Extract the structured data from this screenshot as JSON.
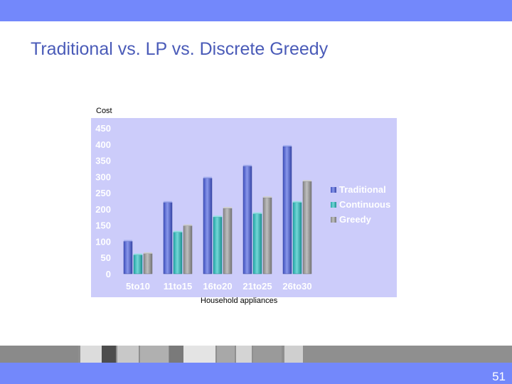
{
  "slide": {
    "title": "Traditional vs. LP vs. Discrete Greedy",
    "page_number": "51"
  },
  "colors": {
    "header_bar": "#7388fb",
    "plot_background": "#ccccfa",
    "traditional": "#4a5fe0",
    "continuous": "#27c2c2",
    "greedy": "#9c9c9c"
  },
  "chart_data": {
    "type": "bar",
    "title": "",
    "xlabel": "Household appliances",
    "ylabel": "Cost",
    "categories": [
      "5to10",
      "11to15",
      "16to20",
      "21to25",
      "26to30"
    ],
    "series": [
      {
        "name": "Traditional",
        "values": [
          100,
          220,
          295,
          332,
          393
        ]
      },
      {
        "name": "Continuous",
        "values": [
          58,
          128,
          175,
          185,
          220
        ]
      },
      {
        "name": "Greedy",
        "values": [
          62,
          148,
          202,
          235,
          285
        ]
      }
    ],
    "ylim": [
      0,
      450
    ],
    "yticks": [
      "0",
      "50",
      "100",
      "150",
      "200",
      "250",
      "300",
      "350",
      "400",
      "450"
    ],
    "legend_position": "right",
    "grid": false
  }
}
